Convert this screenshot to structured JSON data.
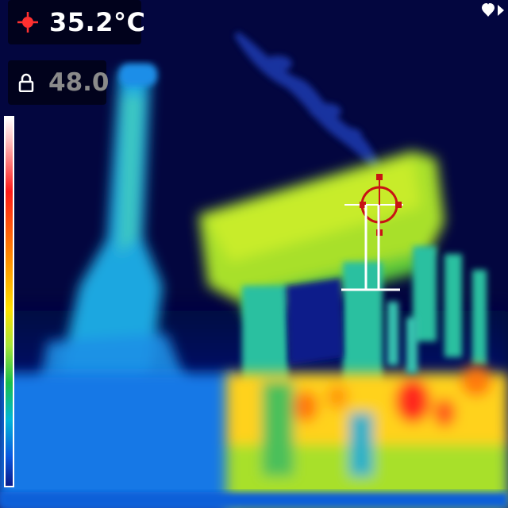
{
  "spot_temperature": {
    "value": "35.2°C",
    "icon": "crosshair-spot-icon",
    "icon_color": "#ff3030"
  },
  "scale_lock": {
    "value": "48.0",
    "icon": "lock-icon"
  },
  "palette": {
    "name": "iron-rainbow",
    "hot": "#ff1a1a",
    "cold": "#0a1a8a"
  },
  "brand": {
    "icon": "heart-logo-icon"
  }
}
